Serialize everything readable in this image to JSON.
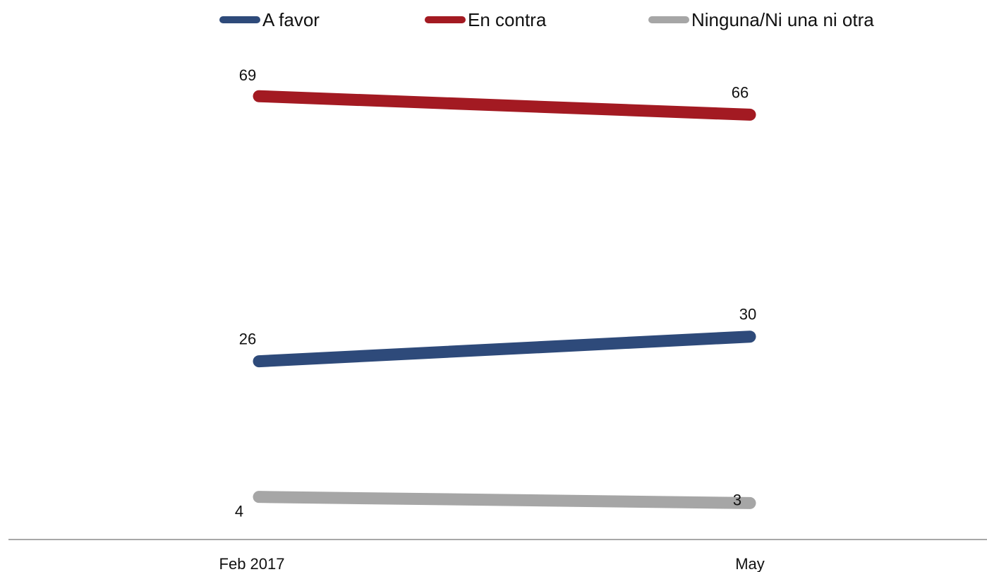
{
  "chart_data": {
    "type": "line",
    "title": "",
    "xlabel": "",
    "ylabel": "",
    "categories": [
      "Feb 2017",
      "May"
    ],
    "ylim": [
      0,
      80
    ],
    "grid": false,
    "legend_position": "top",
    "series": [
      {
        "name": "A favor",
        "color": "#2E4A7A",
        "values": [
          26,
          30
        ]
      },
      {
        "name": "En contra",
        "color": "#A31A22",
        "values": [
          69,
          66
        ]
      },
      {
        "name": "Ninguna/Ni una ni otra",
        "color": "#A6A6A6",
        "values": [
          4,
          3
        ]
      }
    ]
  }
}
